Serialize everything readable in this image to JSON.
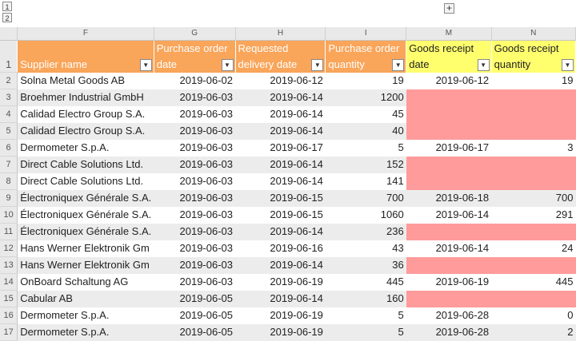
{
  "outline": {
    "levels": [
      "1",
      "2"
    ],
    "expand_symbol": "+"
  },
  "columns": [
    "F",
    "G",
    "H",
    "I",
    "M",
    "N"
  ],
  "headers": [
    {
      "lines": [
        "",
        "Supplier name"
      ],
      "style": "orange"
    },
    {
      "lines": [
        "Purchase order",
        "date"
      ],
      "style": "orange"
    },
    {
      "lines": [
        "Requested",
        "delivery date"
      ],
      "style": "orange"
    },
    {
      "lines": [
        "Purchase order",
        "quantity"
      ],
      "style": "orange"
    },
    {
      "lines": [
        "Goods receipt",
        "date"
      ],
      "style": "yellow"
    },
    {
      "lines": [
        "Goods receipt",
        "quantity"
      ],
      "style": "yellow"
    }
  ],
  "filter_symbol": "▼",
  "header_row_number": "1",
  "rows": [
    {
      "n": "2",
      "supplier": "Solna Metal Goods AB",
      "po_date": "2019-06-02",
      "req_date": "2019-06-12",
      "po_qty": "19",
      "gr_date": "2019-06-12",
      "gr_qty": "19"
    },
    {
      "n": "3",
      "supplier": "Broehmer Industrial GmbH",
      "po_date": "2019-06-03",
      "req_date": "2019-06-14",
      "po_qty": "1200",
      "gr_date": "",
      "gr_qty": ""
    },
    {
      "n": "4",
      "supplier": "Calidad Electro Group S.A.",
      "po_date": "2019-06-03",
      "req_date": "2019-06-14",
      "po_qty": "45",
      "gr_date": "",
      "gr_qty": ""
    },
    {
      "n": "5",
      "supplier": "Calidad Electro Group S.A.",
      "po_date": "2019-06-03",
      "req_date": "2019-06-14",
      "po_qty": "40",
      "gr_date": "",
      "gr_qty": ""
    },
    {
      "n": "6",
      "supplier": "Dermometer S.p.A.",
      "po_date": "2019-06-03",
      "req_date": "2019-06-17",
      "po_qty": "5",
      "gr_date": "2019-06-17",
      "gr_qty": "3"
    },
    {
      "n": "7",
      "supplier": "Direct Cable Solutions Ltd.",
      "po_date": "2019-06-03",
      "req_date": "2019-06-14",
      "po_qty": "152",
      "gr_date": "",
      "gr_qty": ""
    },
    {
      "n": "8",
      "supplier": "Direct Cable Solutions Ltd.",
      "po_date": "2019-06-03",
      "req_date": "2019-06-14",
      "po_qty": "141",
      "gr_date": "",
      "gr_qty": ""
    },
    {
      "n": "9",
      "supplier": "Électroniquex Générale S.A.",
      "po_date": "2019-06-03",
      "req_date": "2019-06-15",
      "po_qty": "700",
      "gr_date": "2019-06-18",
      "gr_qty": "700"
    },
    {
      "n": "10",
      "supplier": "Électroniquex Générale S.A.",
      "po_date": "2019-06-03",
      "req_date": "2019-06-15",
      "po_qty": "1060",
      "gr_date": "2019-06-14",
      "gr_qty": "291"
    },
    {
      "n": "11",
      "supplier": "Électroniquex Générale S.A.",
      "po_date": "2019-06-03",
      "req_date": "2019-06-14",
      "po_qty": "236",
      "gr_date": "",
      "gr_qty": ""
    },
    {
      "n": "12",
      "supplier": "Hans Werner Elektronik Gm",
      "po_date": "2019-06-03",
      "req_date": "2019-06-16",
      "po_qty": "43",
      "gr_date": "2019-06-14",
      "gr_qty": "24"
    },
    {
      "n": "13",
      "supplier": "Hans Werner Elektronik Gm",
      "po_date": "2019-06-03",
      "req_date": "2019-06-14",
      "po_qty": "36",
      "gr_date": "",
      "gr_qty": ""
    },
    {
      "n": "14",
      "supplier": "OnBoard Schaltung AG",
      "po_date": "2019-06-03",
      "req_date": "2019-06-19",
      "po_qty": "445",
      "gr_date": "2019-06-19",
      "gr_qty": "445"
    },
    {
      "n": "15",
      "supplier": "Cabular AB",
      "po_date": "2019-06-05",
      "req_date": "2019-06-14",
      "po_qty": "160",
      "gr_date": "",
      "gr_qty": ""
    },
    {
      "n": "16",
      "supplier": "Dermometer S.p.A.",
      "po_date": "2019-06-05",
      "req_date": "2019-06-19",
      "po_qty": "5",
      "gr_date": "2019-06-28",
      "gr_qty": "0"
    },
    {
      "n": "17",
      "supplier": "Dermometer S.p.A.",
      "po_date": "2019-06-05",
      "req_date": "2019-06-19",
      "po_qty": "5",
      "gr_date": "2019-06-28",
      "gr_qty": "2"
    }
  ],
  "colors": {
    "orange_header": "#f9a55a",
    "yellow_header": "#ffff6e",
    "missing_receipt": "#ff9b9b",
    "alt_row": "#ececec"
  }
}
